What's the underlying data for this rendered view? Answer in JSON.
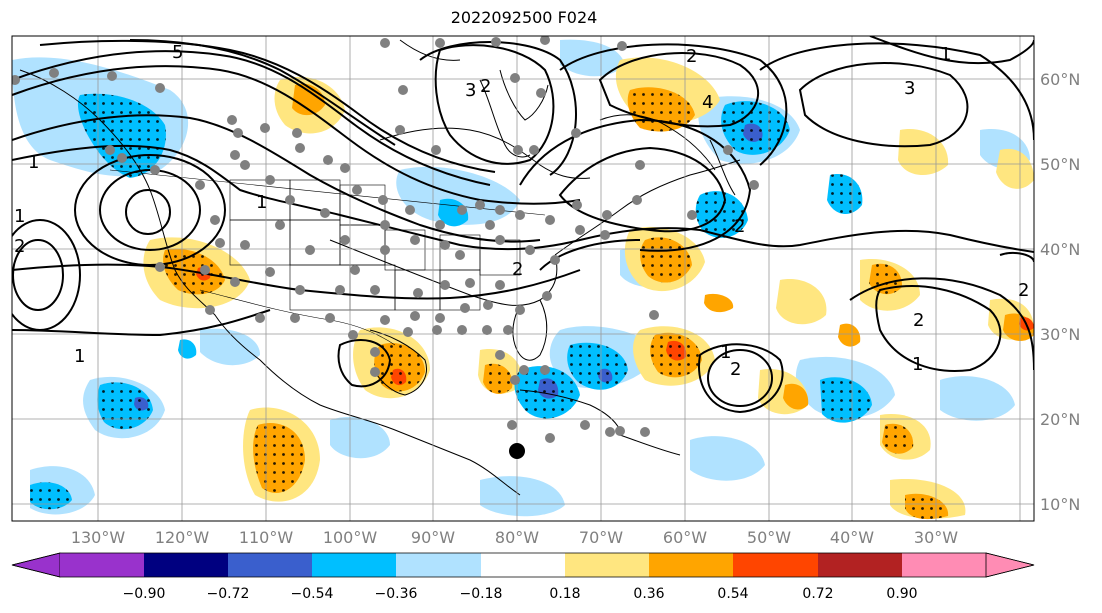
{
  "title": "2022092500 F024",
  "map": {
    "lon_range": [
      -140,
      -18
    ],
    "lat_range": [
      8,
      65
    ],
    "lon_labels": [
      "130°W",
      "120°W",
      "110°W",
      "100°W",
      "90°W",
      "80°W",
      "70°W",
      "60°W",
      "50°W",
      "40°W",
      "30°W"
    ],
    "lat_labels": [
      "10°N",
      "20°N",
      "30°N",
      "40°N",
      "50°N",
      "60°N"
    ],
    "contour_labels": [
      "5",
      "3",
      "2",
      "2",
      "4",
      "3",
      "1",
      "1",
      "1",
      "2",
      "1",
      "1",
      "2",
      "2",
      "2",
      "1",
      "2",
      "1",
      "2"
    ]
  },
  "colorbar": {
    "ticks": [
      "−0.90",
      "−0.72",
      "−0.54",
      "−0.36",
      "−0.18",
      "0.18",
      "0.36",
      "0.54",
      "0.72",
      "0.90"
    ],
    "colors": [
      "#9932cc",
      "#000080",
      "#3a5fcd",
      "#00bfff",
      "#b0e2ff",
      "#ffffff",
      "#ffe680",
      "#ffa500",
      "#ff4500",
      "#b22222",
      "#ff8cb4"
    ]
  },
  "legend_colors": {
    "light_blue": "#b0e2ff",
    "blue": "#00bfff",
    "mid_blue": "#3a5fcd",
    "purple": "#9932cc",
    "yellow": "#ffe680",
    "orange": "#ffa500",
    "red": "#ff4500",
    "dark_red": "#b22222",
    "dot_gray": "#808080"
  }
}
